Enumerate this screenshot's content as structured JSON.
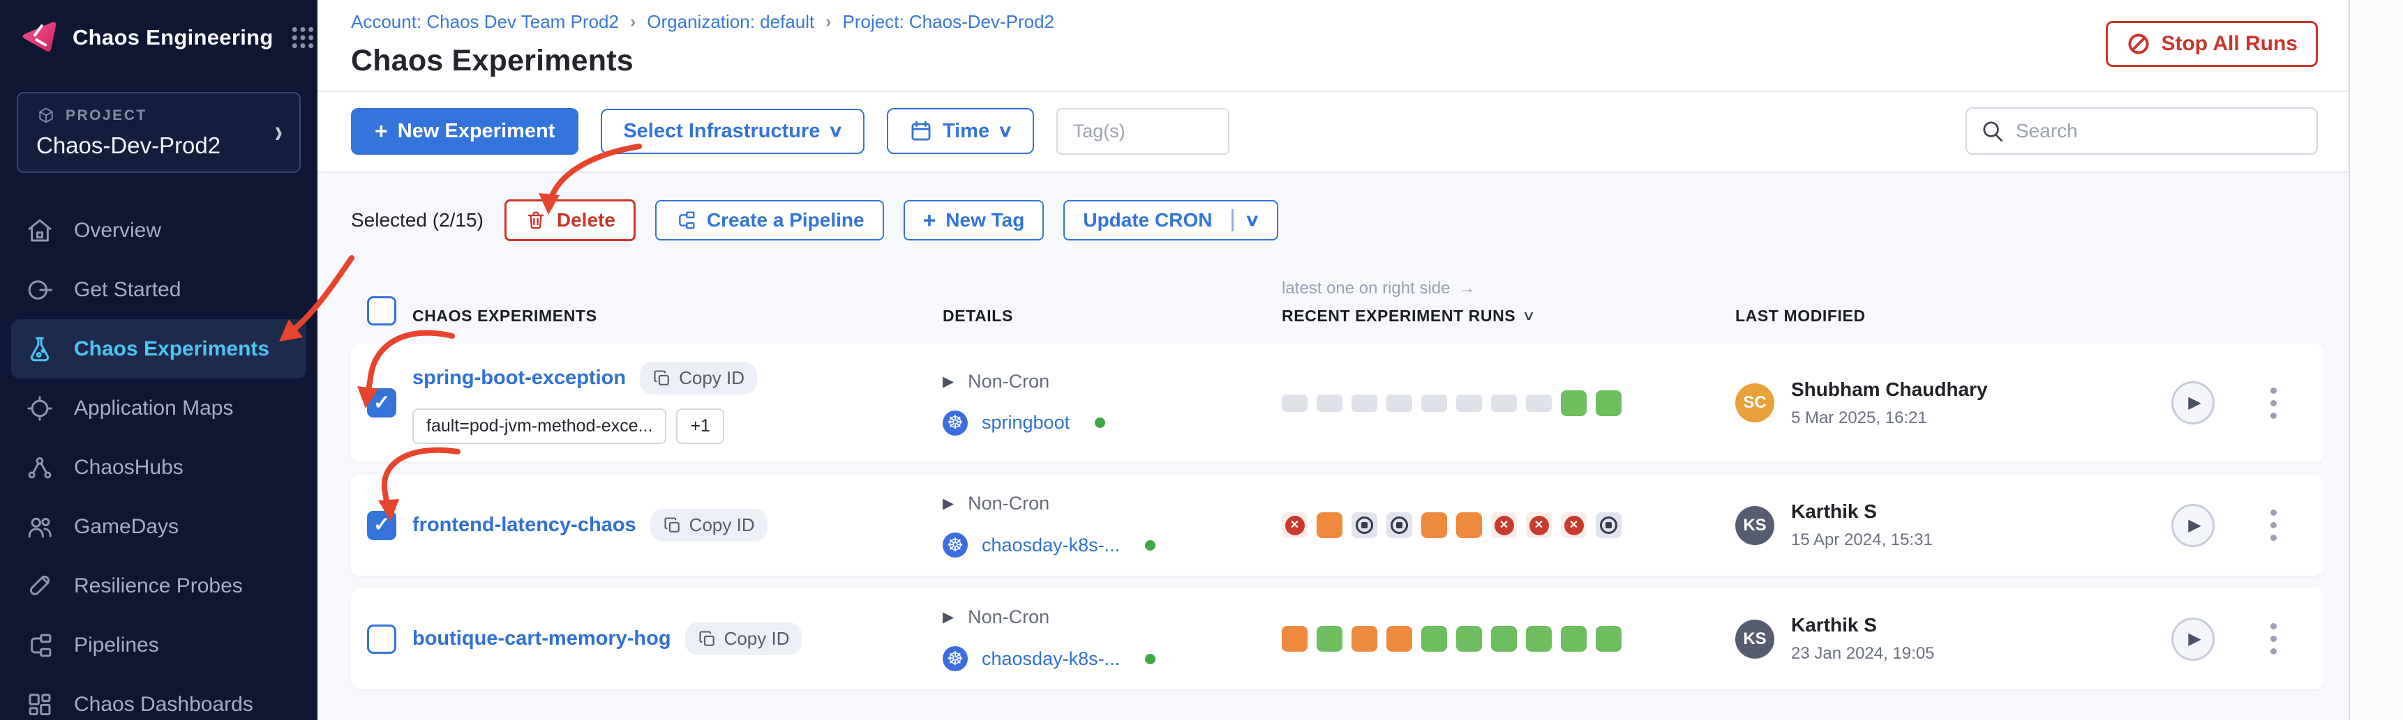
{
  "glyphs": {
    "plus": "+",
    "chevron_down": "∨",
    "chevron_right": "›",
    "arrow_right": "→",
    "check": "✓",
    "triangle_right": "▶",
    "x_mark": "✕",
    "k8s_wheel": "☸",
    "divider": "|"
  },
  "colors": {
    "accent_pink": "#F63E6B",
    "primary_blue": "#3473D9",
    "link_blue": "#3170D2",
    "danger_red": "#C9362B",
    "success_green": "#6DBE5F",
    "warning_orange": "#EE8A3E",
    "failed_red": "#C93A2E",
    "sidebar_active_blue": "#4CC5F2",
    "annotation_red": "#E8432C"
  },
  "sidebar": {
    "product": "Chaos Engineering",
    "project_label": "PROJECT",
    "project_name": "Chaos-Dev-Prod2",
    "items": [
      {
        "label": "Overview",
        "icon": "home-icon"
      },
      {
        "label": "Get Started",
        "icon": "get-started-icon"
      },
      {
        "label": "Chaos Experiments",
        "icon": "flask-icon",
        "active": true
      },
      {
        "label": "Application Maps",
        "icon": "target-icon"
      },
      {
        "label": "ChaosHubs",
        "icon": "hub-icon"
      },
      {
        "label": "GameDays",
        "icon": "people-icon"
      },
      {
        "label": "Resilience Probes",
        "icon": "test-tube-icon"
      },
      {
        "label": "Pipelines",
        "icon": "pipeline-icon"
      },
      {
        "label": "Chaos Dashboards",
        "icon": "dashboard-icon"
      }
    ]
  },
  "breadcrumb": {
    "separator": "›",
    "items": [
      "Account: Chaos Dev Team Prod2",
      "Organization: default",
      "Project: Chaos-Dev-Prod2"
    ]
  },
  "header": {
    "title": "Chaos Experiments",
    "stop_all_runs_label": "Stop All Runs"
  },
  "toolbar": {
    "new_experiment_label": "New Experiment",
    "select_infrastructure_label": "Select Infrastructure",
    "time_label": "Time",
    "tags_placeholder": "Tag(s)",
    "search_placeholder": "Search"
  },
  "selection_bar": {
    "selected_text": "Selected (2/15)",
    "delete_label": "Delete",
    "create_pipeline_label": "Create a Pipeline",
    "new_tag_label": "New Tag",
    "update_cron_label": "Update CRON"
  },
  "table": {
    "runs_note": "latest one on right side",
    "headers": {
      "experiments": "CHAOS EXPERIMENTS",
      "details": "DETAILS",
      "runs": "RECENT EXPERIMENT RUNS",
      "modified": "LAST MODIFIED"
    },
    "rows": [
      {
        "checked": true,
        "name": "spring-boot-exception",
        "copy_label": "Copy ID",
        "tags": [
          "fault=pod-jvm-method-exce...",
          "+1"
        ],
        "cron": "Non-Cron",
        "infra": "springboot",
        "runs": [
          "empty",
          "empty",
          "empty",
          "empty",
          "empty",
          "empty",
          "empty",
          "empty",
          "success",
          "success"
        ],
        "modified": {
          "initials": "SC",
          "avatar_color": "#E9A13B",
          "name": "Shubham Chaudhary",
          "date": "5 Mar 2025, 16:21"
        }
      },
      {
        "checked": true,
        "name": "frontend-latency-chaos",
        "copy_label": "Copy ID",
        "cron": "Non-Cron",
        "infra": "chaosday-k8s-...",
        "runs": [
          "failed",
          "warning",
          "stopped",
          "stopped",
          "warning",
          "warning",
          "failed",
          "failed",
          "failed",
          "stopped"
        ],
        "modified": {
          "initials": "KS",
          "avatar_color": "#575D70",
          "name": "Karthik S",
          "date": "15 Apr 2024, 15:31"
        }
      },
      {
        "checked": false,
        "name": "boutique-cart-memory-hog",
        "copy_label": "Copy ID",
        "cron": "Non-Cron",
        "infra": "chaosday-k8s-...",
        "runs": [
          "warning",
          "success",
          "warning",
          "warning",
          "success",
          "success",
          "success",
          "success",
          "success",
          "success"
        ],
        "modified": {
          "initials": "KS",
          "avatar_color": "#575D70",
          "name": "Karthik S",
          "date": "23 Jan 2024, 19:05"
        }
      }
    ]
  }
}
